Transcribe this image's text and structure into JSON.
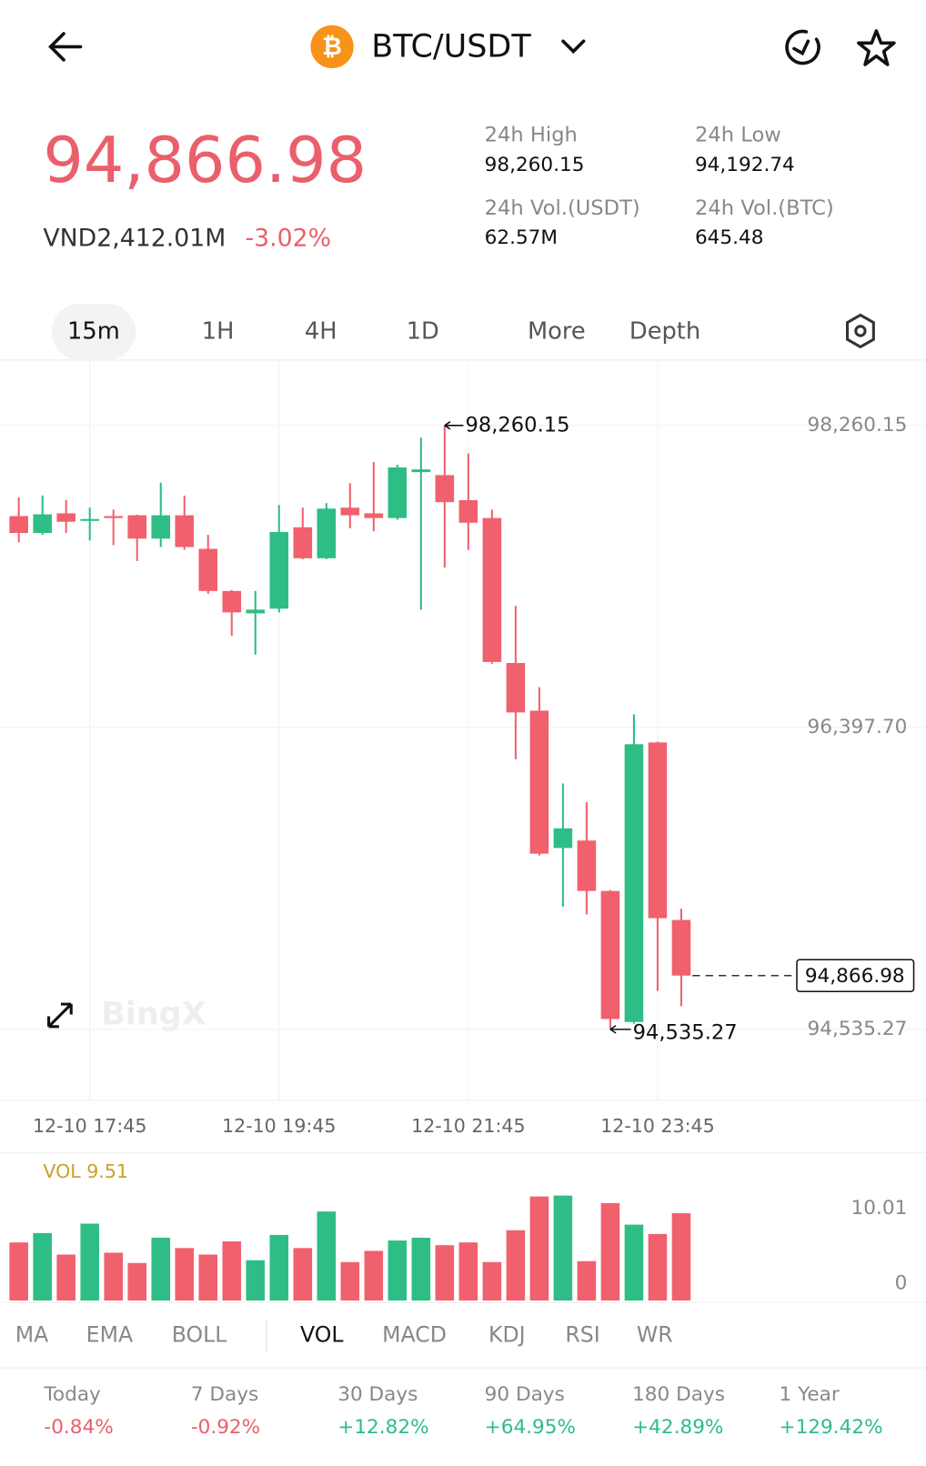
{
  "header": {
    "pair": "BTC/USDT"
  },
  "price": {
    "last": "94,866.98",
    "fiat": "VND2,412.01M",
    "change": "-3.02%"
  },
  "stats": [
    {
      "label": "24h High",
      "value": "98,260.15"
    },
    {
      "label": "24h Low",
      "value": "94,192.74"
    },
    {
      "label": "24h Vol.(USDT)",
      "value": "62.57M"
    },
    {
      "label": "24h Vol.(BTC)",
      "value": "645.48"
    }
  ],
  "tabs": [
    "15m",
    "1H",
    "4H",
    "1D",
    "More",
    "Depth"
  ],
  "active_tab": 0,
  "watermark": "BingX",
  "chart_data": {
    "type": "candlestick",
    "up_color": "#2ebd85",
    "down_color": "#f0616d",
    "open": [
      97701,
      97597,
      97718,
      97672,
      97701,
      97706,
      97562,
      97706,
      97499,
      97239,
      97101,
      97130,
      97632,
      97441,
      97753,
      97718,
      97689,
      97972,
      97954,
      97799,
      97689,
      96795,
      96501,
      95654,
      95700,
      95389,
      94581,
      96305,
      95210
    ],
    "high": [
      97816,
      97828,
      97799,
      97753,
      97741,
      97710,
      97908,
      97828,
      97585,
      97245,
      97239,
      97770,
      97753,
      97781,
      97903,
      98035,
      98018,
      98185,
      98260.15,
      98087,
      97741,
      97147,
      96646,
      96052,
      95936,
      95395,
      96478,
      96310,
      95279
    ],
    "low": [
      97539,
      97585,
      97597,
      97551,
      97522,
      97424,
      97510,
      97493,
      97222,
      96963,
      96847,
      97107,
      97435,
      97435,
      97626,
      97608,
      97678,
      97124,
      97384,
      97493,
      96790,
      96202,
      95608,
      95291,
      95244,
      94535.27,
      94570,
      94772,
      94679
    ],
    "close": [
      97597,
      97712,
      97666,
      97683,
      97689,
      97562,
      97706,
      97510,
      97239,
      97107,
      97124,
      97603,
      97441,
      97747,
      97706,
      97689,
      98001,
      97989,
      97787,
      97660,
      96801,
      96490,
      95619,
      95775,
      95389,
      94599,
      96294,
      95221,
      94866.98
    ],
    "ylim": [
      94097,
      98664
    ],
    "yticks": [
      {
        "value": 98260.15,
        "label": "98,260.15"
      },
      {
        "value": 96397.7,
        "label": "96,397.70"
      },
      {
        "value": 94535.27,
        "label": "94,535.27"
      }
    ],
    "xticks": [
      {
        "value": 3,
        "label": "12-10 17:45"
      },
      {
        "value": 11,
        "label": "12-10 19:45"
      },
      {
        "value": 19,
        "label": "12-10 21:45"
      },
      {
        "value": 27,
        "label": "12-10 23:45"
      }
    ],
    "high_annotation": {
      "index": 18,
      "label": "98,260.15"
    },
    "low_annotation": {
      "index": 25,
      "label": "94,535.27"
    },
    "last_price_label": "94,866.98",
    "volume": {
      "title": "VOL 9.51",
      "values": [
        6.33,
        7.35,
        5.01,
        8.38,
        5.21,
        4.09,
        6.84,
        5.72,
        5.01,
        6.44,
        4.39,
        7.15,
        5.72,
        9.7,
        4.19,
        5.41,
        6.54,
        6.84,
        6.03,
        6.33,
        4.19,
        7.66,
        11.34,
        11.44,
        4.29,
        10.62,
        8.27,
        7.25,
        9.51
      ],
      "ylim": [
        0,
        16.1
      ],
      "yticks": [
        0,
        10.01
      ]
    }
  },
  "indicators": [
    "MA",
    "EMA",
    "BOLL",
    "VOL",
    "MACD",
    "KDJ",
    "RSI",
    "WR"
  ],
  "active_indicator": 3,
  "performance": [
    {
      "label": "Today",
      "value": "-0.84%"
    },
    {
      "label": "7 Days",
      "value": "-0.92%"
    },
    {
      "label": "30 Days",
      "value": "+12.82%"
    },
    {
      "label": "90 Days",
      "value": "+64.95%"
    },
    {
      "label": "180 Days",
      "value": "+42.89%"
    },
    {
      "label": "1 Year",
      "value": "+129.42%"
    }
  ]
}
